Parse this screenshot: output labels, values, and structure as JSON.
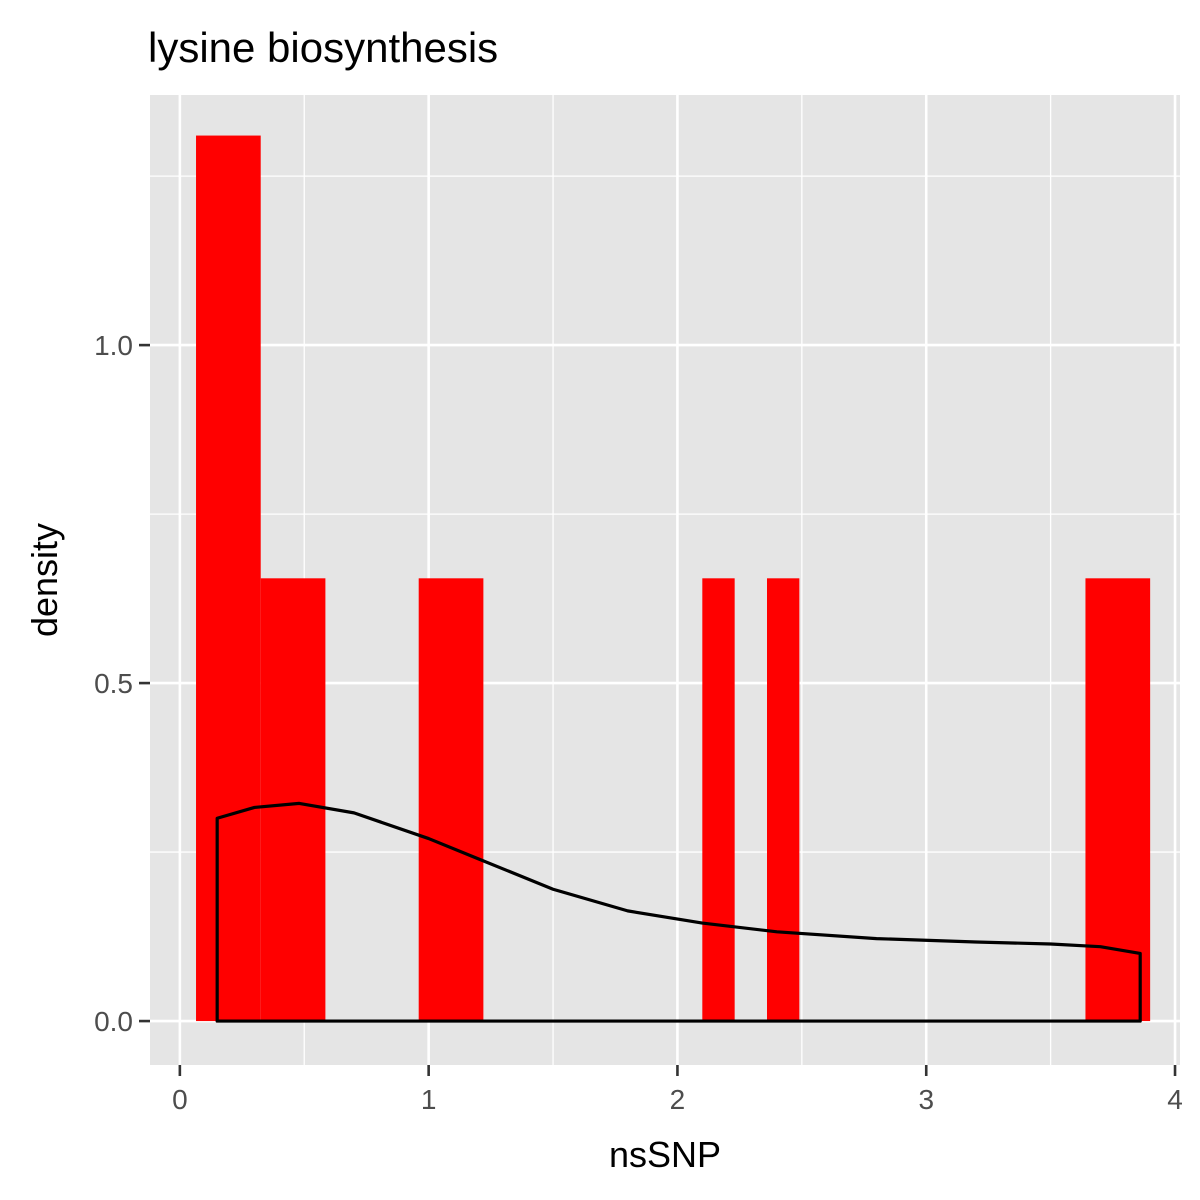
{
  "chart_data": {
    "type": "bar",
    "title": "lysine biosynthesis",
    "xlabel": "nsSNP",
    "ylabel": "density",
    "xlim": [
      -0.12,
      4.02
    ],
    "ylim": [
      -0.065,
      1.37
    ],
    "x_ticks": [
      0,
      1,
      2,
      3,
      4
    ],
    "x_tick_labels": [
      "0",
      "1",
      "2",
      "3",
      "4"
    ],
    "y_ticks": [
      0.0,
      0.5,
      1.0
    ],
    "y_tick_labels": [
      "0.0",
      "0.5",
      "1.0"
    ],
    "histogram": [
      {
        "x0": 0.065,
        "x1": 0.325,
        "density": 1.31
      },
      {
        "x0": 0.325,
        "x1": 0.585,
        "density": 0.655
      },
      {
        "x0": 0.96,
        "x1": 1.22,
        "density": 0.655
      },
      {
        "x0": 2.1,
        "x1": 2.23,
        "density": 0.655
      },
      {
        "x0": 2.36,
        "x1": 2.49,
        "density": 0.655
      },
      {
        "x0": 3.64,
        "x1": 3.9,
        "density": 0.655
      }
    ],
    "density_curve": {
      "x": [
        0.15,
        0.3,
        0.48,
        0.7,
        1.0,
        1.2,
        1.5,
        1.8,
        2.1,
        2.4,
        2.8,
        3.2,
        3.5,
        3.7,
        3.86
      ],
      "y": [
        0.3,
        0.316,
        0.322,
        0.308,
        0.27,
        0.24,
        0.195,
        0.163,
        0.145,
        0.132,
        0.122,
        0.117,
        0.114,
        0.11,
        0.1
      ]
    },
    "bar_color": "#ff0000",
    "curve_color": "#000000",
    "panel_background": "#e5e5e5",
    "grid_color": "#ffffff",
    "grid": true
  }
}
